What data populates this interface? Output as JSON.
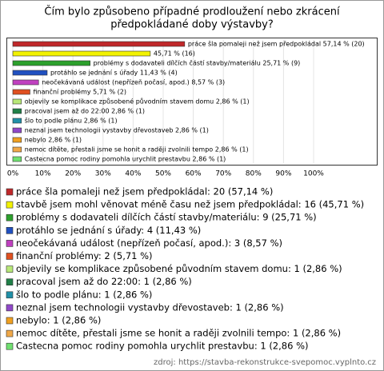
{
  "chart_data": {
    "type": "hbar",
    "title": [
      "Čím bylo způsobeno případné prodloužení nebo zkrácení",
      "předpokládané doby výstavby?"
    ],
    "values": [
      57.14,
      45.71,
      25.71,
      11.43,
      8.57,
      5.71,
      2.86,
      2.86,
      2.86,
      2.86,
      2.86,
      2.86,
      2.86
    ],
    "value_labels": [
      "práce šla pomaleji než jsem předpokládal 57,14 % (20)",
      "45,71 % (16)",
      "problémy s dodavateli dílčích částí stavby/materiálu 25,71 % (9)",
      "protáhlo se jednání s úřady 11,43 % (4)",
      "neočekávaná událost (nepřízeň počasí, apod.) 8,57 % (3)",
      "finanční problémy 5,71 % (2)",
      "objevily se komplikace způsobené původním stavem domu 2,86 % (1)",
      "pracoval jsem až do 22:00 2,86 % (1)",
      "šlo to podle plánu 2,86 % (1)",
      "neznal jsem technologii vystavby dřevostaveb 2,86 % (1)",
      "nebylo 2,86 % (1)",
      "nemoc dítěte, přestali jsme se honit a raději zvolnili tempo 2,86 % (1)",
      "Castecna pomoc rodiny pomohla urychlit prestavbu 2,86 % (1)"
    ],
    "colors": [
      "#c0282a",
      "#f2f200",
      "#2ca02c",
      "#2050c0",
      "#c040c0",
      "#e05020",
      "#b8e878",
      "#208048",
      "#2090a8",
      "#9048c8",
      "#f0a020",
      "#f0a848",
      "#70e070"
    ],
    "legend": [
      "práce šla pomaleji než jsem předpokládal: 20 (57,14 %)",
      "stavbě jsem mohl věnovat méně času než jsem předpokládal: 16 (45,71 %)",
      "problémy s dodavateli dílčích částí stavby/materiálu: 9 (25,71 %)",
      "protáhlo se jednání s úřady: 4 (11,43 %)",
      "neočekávaná událost (nepřízeň počasí, apod.): 3 (8,57 %)",
      "finanční problémy: 2 (5,71 %)",
      "objevily se komplikace způsobené původním stavem domu: 1 (2,86 %)",
      "pracoval jsem až do 22:00: 1 (2,86 %)",
      "šlo to podle plánu: 1 (2,86 %)",
      "neznal jsem technologii vystavby dřevostaveb: 1 (2,86 %)",
      "nebylo: 1 (2,86 %)",
      "nemoc dítěte, přestali jsme se honit a raději zvolnili tempo: 1 (2,86 %)",
      "Castecna pomoc rodiny pomohla urychlit prestavbu: 1 (2,86 %)"
    ],
    "xlim": [
      0,
      100
    ],
    "xticks": [
      {
        "value": 0,
        "label": "0%"
      },
      {
        "value": 10,
        "label": "10%"
      },
      {
        "value": 20,
        "label": "20%"
      },
      {
        "value": 30,
        "label": "30%"
      },
      {
        "value": 40,
        "label": "40%"
      },
      {
        "value": 50,
        "label": "50%"
      },
      {
        "value": 60,
        "label": "60%"
      },
      {
        "value": 70,
        "label": "70%"
      },
      {
        "value": 80,
        "label": "80%"
      },
      {
        "value": 90,
        "label": "90%"
      },
      {
        "value": 100,
        "label": "100%"
      }
    ],
    "grid": true,
    "source": "zdroj: https://stavba-rekonstrukce-svepomoc.vyplnto.cz"
  }
}
